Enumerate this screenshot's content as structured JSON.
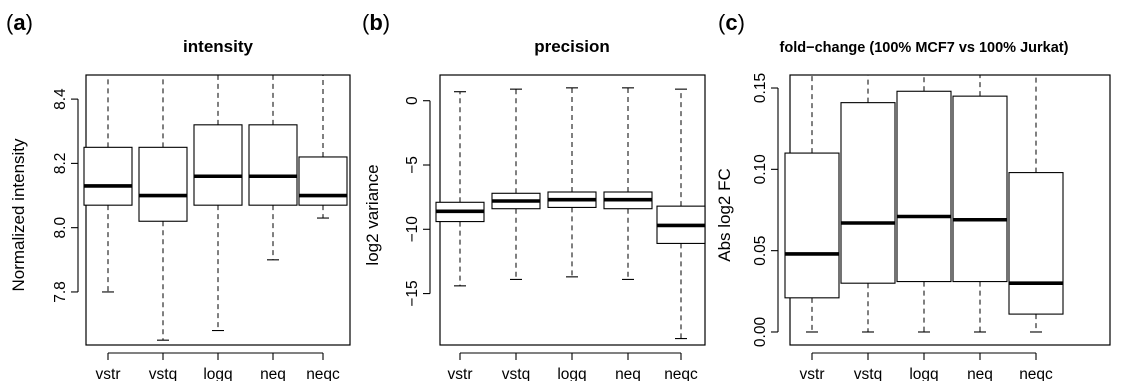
{
  "panels": [
    {
      "letter": "a",
      "title": "intensity",
      "ylabel": "Normalized intensity",
      "yticks": [
        "7.8",
        "8.0",
        "8.2",
        "8.4"
      ],
      "ytick_values": [
        7.8,
        8.0,
        8.2,
        8.4
      ],
      "ylim": [
        7.635,
        8.475
      ]
    },
    {
      "letter": "b",
      "title": "precision",
      "ylabel": "log2 variance",
      "yticks": [
        "0",
        "−5",
        "−10",
        "−15"
      ],
      "ytick_values": [
        0,
        -5,
        -10,
        -15
      ],
      "ylim": [
        -19.0,
        2.0
      ]
    },
    {
      "letter": "c",
      "title": "fold−change (100% MCF7 vs 100% Jurkat)",
      "ylabel": "Abs log2 FC",
      "yticks": [
        "0.00",
        "0.05",
        "0.10",
        "0.15"
      ],
      "ytick_values": [
        0.0,
        0.05,
        0.1,
        0.15
      ],
      "ylim": [
        -0.008,
        0.158
      ]
    }
  ],
  "chart_data": [
    {
      "type": "boxplot",
      "title": "intensity",
      "ylabel": "Normalized intensity",
      "categories": [
        "vstr",
        "vstq",
        "logq",
        "neq",
        "neqc"
      ],
      "ylim": [
        7.635,
        8.475
      ],
      "boxes": [
        {
          "whisker_low": 7.8,
          "q1": 8.07,
          "median": 8.13,
          "q3": 8.25,
          "whisker_high": 8.475
        },
        {
          "whisker_low": 7.65,
          "q1": 8.02,
          "median": 8.1,
          "q3": 8.25,
          "whisker_high": 8.475
        },
        {
          "whisker_low": 7.68,
          "q1": 8.07,
          "median": 8.16,
          "q3": 8.32,
          "whisker_high": 8.475
        },
        {
          "whisker_low": 7.9,
          "q1": 8.07,
          "median": 8.16,
          "q3": 8.32,
          "whisker_high": 8.475
        },
        {
          "whisker_low": 8.03,
          "q1": 8.07,
          "median": 8.1,
          "q3": 8.22,
          "whisker_high": 8.475
        }
      ]
    },
    {
      "type": "boxplot",
      "title": "precision",
      "ylabel": "log2 variance",
      "categories": [
        "vstr",
        "vstq",
        "logq",
        "neq",
        "neqc"
      ],
      "ylim": [
        -19.0,
        2.0
      ],
      "boxes": [
        {
          "whisker_low": -14.4,
          "q1": -9.4,
          "median": -8.6,
          "q3": -7.9,
          "whisker_high": 0.7
        },
        {
          "whisker_low": -13.9,
          "q1": -8.4,
          "median": -7.8,
          "q3": -7.2,
          "whisker_high": 0.9
        },
        {
          "whisker_low": -13.7,
          "q1": -8.3,
          "median": -7.7,
          "q3": -7.1,
          "whisker_high": 1.0
        },
        {
          "whisker_low": -13.9,
          "q1": -8.4,
          "median": -7.7,
          "q3": -7.1,
          "whisker_high": 1.0
        },
        {
          "whisker_low": -18.5,
          "q1": -11.1,
          "median": -9.7,
          "q3": -8.2,
          "whisker_high": 0.9
        }
      ]
    },
    {
      "type": "boxplot",
      "title": "fold−change (100% MCF7 vs 100% Jurkat)",
      "ylabel": "Abs log2 FC",
      "categories": [
        "vstr",
        "vstq",
        "logq",
        "neq",
        "neqc"
      ],
      "ylim": [
        -0.008,
        0.158
      ],
      "boxes": [
        {
          "whisker_low": 0.0,
          "q1": 0.021,
          "median": 0.048,
          "q3": 0.11,
          "whisker_high": 0.158
        },
        {
          "whisker_low": 0.0,
          "q1": 0.03,
          "median": 0.067,
          "q3": 0.141,
          "whisker_high": 0.158
        },
        {
          "whisker_low": 0.0,
          "q1": 0.031,
          "median": 0.071,
          "q3": 0.148,
          "whisker_high": 0.158
        },
        {
          "whisker_low": 0.0,
          "q1": 0.031,
          "median": 0.069,
          "q3": 0.145,
          "whisker_high": 0.158
        },
        {
          "whisker_low": 0.0,
          "q1": 0.011,
          "median": 0.03,
          "q3": 0.098,
          "whisker_high": 0.158
        }
      ]
    }
  ]
}
